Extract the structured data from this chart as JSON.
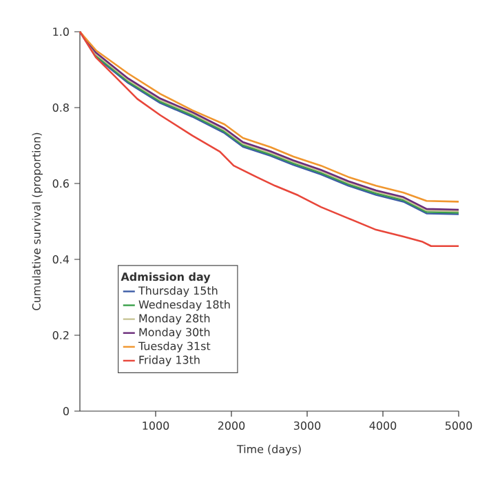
{
  "chart_data": {
    "type": "line",
    "xlabel": "Time (days)",
    "ylabel": "Cumulative survival (proportion)",
    "legend_title": "Admission day",
    "legend": "bottom left",
    "xlim": [
      0,
      5000
    ],
    "ylim": [
      0,
      1
    ],
    "xticks": [
      1000,
      2000,
      3000,
      4000,
      5000
    ],
    "yticks": [
      0,
      0.2,
      0.4,
      0.6,
      0.8,
      {
        "value": 1,
        "label": "1.0"
      }
    ],
    "series": [
      {
        "name": "Thursday 15th",
        "color": "#3b5ba5",
        "x": [
          0,
          212,
          636,
          1061,
          1485,
          1909,
          2152,
          2515,
          2818,
          3182,
          3545,
          3909,
          4272,
          4576,
          5000
        ],
        "values": [
          1,
          0.933,
          0.865,
          0.812,
          0.776,
          0.733,
          0.697,
          0.673,
          0.649,
          0.624,
          0.594,
          0.57,
          0.552,
          0.521,
          0.519
        ]
      },
      {
        "name": "Wednesday 18th",
        "color": "#3aa04a",
        "x": [
          0,
          212,
          636,
          1061,
          1485,
          1909,
          2152,
          2515,
          2818,
          3182,
          3545,
          3909,
          4272,
          4576,
          5000
        ],
        "values": [
          1,
          0.937,
          0.869,
          0.816,
          0.78,
          0.737,
          0.701,
          0.677,
          0.653,
          0.628,
          0.598,
          0.574,
          0.556,
          0.525,
          0.523
        ]
      },
      {
        "name": "Monday 28th",
        "color": "#c8c496",
        "x": [
          0,
          212,
          636,
          1061,
          1485,
          1909,
          2152,
          2515,
          2818,
          3182,
          3545,
          3909,
          4272,
          4576,
          5000
        ],
        "values": [
          1,
          0.941,
          0.873,
          0.82,
          0.784,
          0.741,
          0.705,
          0.681,
          0.657,
          0.632,
          0.602,
          0.578,
          0.56,
          0.529,
          0.527
        ]
      },
      {
        "name": "Monday 30th",
        "color": "#6a2c7a",
        "x": [
          0,
          212,
          636,
          1061,
          1485,
          1909,
          2152,
          2515,
          2818,
          3182,
          3545,
          3909,
          4272,
          4576,
          5000
        ],
        "values": [
          1,
          0.945,
          0.877,
          0.824,
          0.788,
          0.745,
          0.709,
          0.685,
          0.661,
          0.636,
          0.606,
          0.582,
          0.564,
          0.533,
          0.531
        ]
      },
      {
        "name": "Tuesday 31st",
        "color": "#f0962e",
        "x": [
          0,
          212,
          636,
          1061,
          1485,
          1909,
          2152,
          2515,
          2818,
          3182,
          3545,
          3909,
          4272,
          4576,
          5000
        ],
        "values": [
          1,
          0.951,
          0.89,
          0.836,
          0.793,
          0.756,
          0.72,
          0.696,
          0.671,
          0.647,
          0.617,
          0.594,
          0.576,
          0.554,
          0.552
        ]
      },
      {
        "name": "Friday 13th",
        "color": "#e8463a",
        "x": [
          0,
          212,
          455,
          758,
          1061,
          1485,
          1848,
          2030,
          2333,
          2576,
          2879,
          3182,
          3545,
          3909,
          4272,
          4515,
          4636,
          5000
        ],
        "values": [
          1,
          0.932,
          0.884,
          0.823,
          0.78,
          0.726,
          0.684,
          0.647,
          0.617,
          0.594,
          0.569,
          0.538,
          0.508,
          0.478,
          0.46,
          0.447,
          0.435,
          0.435
        ]
      }
    ]
  }
}
